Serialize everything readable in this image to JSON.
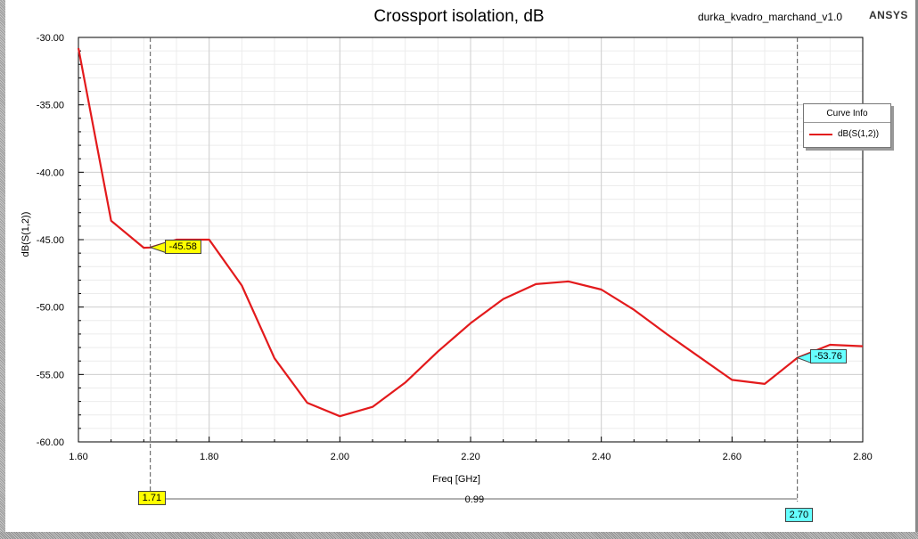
{
  "header": {
    "title": "Crossport isolation, dB",
    "project": "durka_kvadro_marchand_v1.0",
    "brand": "ANSYS"
  },
  "legend": {
    "title": "Curve Info",
    "entry": "dB(S(1,2))"
  },
  "colors": {
    "curve": "#e31a1c",
    "marker_yellow": "#ffff00",
    "marker_cyan": "#66ffff"
  },
  "markers": {
    "m1_value": "-45.58",
    "m2_value": "-53.76",
    "x1_label": "1.71",
    "x2_label": "2.70",
    "delta_label": "0.99"
  },
  "chart_data": {
    "type": "line",
    "title": "Crossport isolation, dB",
    "xlabel": "Freq [GHz]",
    "ylabel": "dB(S(1,2))",
    "xlim": [
      1.6,
      2.8
    ],
    "ylim": [
      -60,
      -30
    ],
    "x_ticks": [
      "1.60",
      "1.80",
      "2.00",
      "2.20",
      "2.40",
      "2.60",
      "2.80"
    ],
    "y_ticks": [
      "-30.00",
      "-35.00",
      "-40.00",
      "-45.00",
      "-50.00",
      "-55.00",
      "-60.00"
    ],
    "grid": true,
    "legend_position": "right",
    "series": [
      {
        "name": "dB(S(1,2))",
        "x": [
          1.6,
          1.65,
          1.7,
          1.71,
          1.75,
          1.8,
          1.85,
          1.9,
          1.95,
          2.0,
          2.05,
          2.1,
          2.15,
          2.2,
          2.25,
          2.3,
          2.35,
          2.4,
          2.45,
          2.5,
          2.55,
          2.6,
          2.65,
          2.7,
          2.75,
          2.8
        ],
        "y": [
          -30.8,
          -43.6,
          -45.6,
          -45.58,
          -45.0,
          -45.0,
          -48.4,
          -53.8,
          -57.1,
          -58.1,
          -57.4,
          -55.6,
          -53.3,
          -51.2,
          -49.4,
          -48.3,
          -48.1,
          -48.7,
          -50.2,
          -52.0,
          -53.7,
          -55.4,
          -55.7,
          -53.76,
          -52.8,
          -52.9
        ]
      }
    ],
    "markers": [
      {
        "x": 1.71,
        "y": -45.58
      },
      {
        "x": 2.7,
        "y": -53.76
      }
    ]
  }
}
